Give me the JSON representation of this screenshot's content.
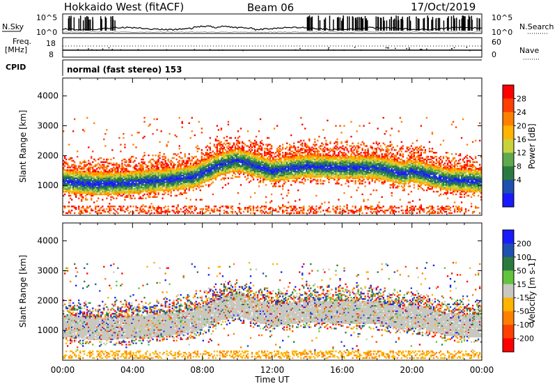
{
  "header": {
    "station": "Hokkaido West (fitACF)",
    "beam": "Beam 06",
    "date": "17/Oct/2019"
  },
  "top_panels": {
    "nsky_label": "N.Sky",
    "nsky_tick_high": "10^5",
    "nsky_tick_low": "10^0",
    "nsearch_label": "N.Search",
    "freq_label": "Freq.",
    "freq_unit": "[MHz]",
    "freq_ticks": [
      "18",
      "8"
    ],
    "nave_label": "Nave",
    "nave_ticks": [
      "60",
      "0"
    ],
    "cpid_label": "CPID",
    "cpid_text": "normal (fast stereo) 153"
  },
  "colors": {
    "power_scale": [
      "#1a1aff",
      "#1f4fb0",
      "#2a7a3f",
      "#62a84c",
      "#c8d23c",
      "#ffb400",
      "#ff8000",
      "#ff4000",
      "#ff0000"
    ],
    "velocity_scale": [
      "#1a1aff",
      "#1f4fb0",
      "#2a7a3f",
      "#62c43c",
      "#c8c8c0",
      "#ffb400",
      "#ff8000",
      "#ff4000",
      "#ff0000"
    ]
  },
  "chart_data": [
    {
      "type": "heatmap",
      "name_of_panel": "power",
      "xlabel": "",
      "ylabel": "Slant Range [km]",
      "x_ticks": [
        "00:00",
        "04:00",
        "08:00",
        "12:00",
        "16:00",
        "20:00",
        "00:00"
      ],
      "y_ticks": [
        "4000",
        "3000",
        "2000",
        "1000"
      ],
      "ylim": [
        0,
        4600
      ],
      "colorbar": {
        "label": "Power [dB]",
        "ticks": [
          "28",
          "24",
          "20",
          "16",
          "12",
          "8",
          "4"
        ],
        "range": [
          0,
          32
        ]
      },
      "main_echo_band_center_km": [
        [
          0,
          1250
        ],
        [
          2,
          1150
        ],
        [
          4,
          1200
        ],
        [
          6,
          1300
        ],
        [
          7.5,
          1400
        ],
        [
          9,
          1800
        ],
        [
          10,
          1950
        ],
        [
          12,
          1600
        ],
        [
          14,
          1750
        ],
        [
          16,
          1700
        ],
        [
          18,
          1700
        ],
        [
          19.5,
          1500
        ],
        [
          20,
          1600
        ],
        [
          22,
          1300
        ],
        [
          24,
          1250
        ]
      ]
    },
    {
      "type": "heatmap",
      "name_of_panel": "velocity",
      "xlabel": "Time UT",
      "ylabel": "Slant Range [km]",
      "x_ticks": [
        "00:00",
        "04:00",
        "08:00",
        "12:00",
        "16:00",
        "20:00",
        "00:00"
      ],
      "y_ticks": [
        "4000",
        "3000",
        "2000",
        "1000"
      ],
      "ylim": [
        0,
        4600
      ],
      "colorbar": {
        "label": "Velocity [m s-1]",
        "ticks": [
          "200",
          "100",
          "50",
          "15",
          "-15",
          "-50",
          "-100",
          "-200"
        ],
        "range": [
          -250,
          250
        ]
      }
    }
  ]
}
